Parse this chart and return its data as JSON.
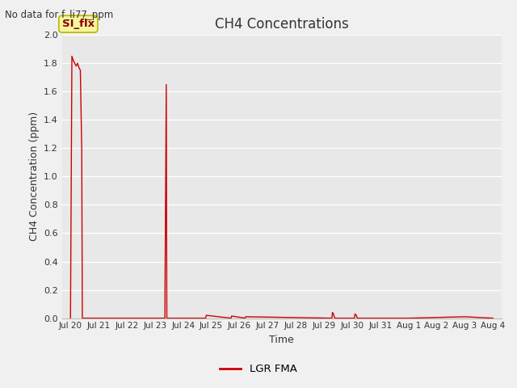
{
  "title": "CH4 Concentrations",
  "top_left_text": "No data for f_li77_ppm",
  "xlabel": "Time",
  "ylabel": "CH4 Concentration (ppm)",
  "ylim": [
    0.0,
    2.0
  ],
  "yticks": [
    0.0,
    0.2,
    0.4,
    0.6,
    0.8,
    1.0,
    1.2,
    1.4,
    1.6,
    1.8,
    2.0
  ],
  "fig_bg_color": "#f0f0f0",
  "plot_bg_color": "#e8e8e8",
  "line_color": "#cc0000",
  "legend_label": "LGR FMA",
  "si_flx_label": "SI_flx",
  "si_flx_box_color": "#f5f5a0",
  "si_flx_box_edge": "#b8b800",
  "x_tick_labels": [
    "Jul 20",
    "Jul 21",
    "Jul 22",
    "Jul 23",
    "Jul 24",
    "Jul 25",
    "Jul 26",
    "Jul 27",
    "Jul 28",
    "Jul 29",
    "Jul 30",
    "Jul 31",
    "Aug 1",
    "Aug 2",
    "Aug 3",
    "Aug 4"
  ],
  "x_tick_positions": [
    0,
    1,
    2,
    3,
    4,
    5,
    6,
    7,
    8,
    9,
    10,
    11,
    12,
    13,
    14,
    15
  ],
  "series_x": [
    0.0,
    0.05,
    0.1,
    0.15,
    0.2,
    0.25,
    0.3,
    0.35,
    0.4,
    0.42,
    0.45,
    1.0,
    3.35,
    3.4,
    3.42,
    3.45,
    4.8,
    4.82,
    5.7,
    5.72,
    6.2,
    6.22,
    9.28,
    9.3,
    9.32,
    9.35,
    9.38,
    10.08,
    10.1,
    10.12,
    10.15,
    10.18,
    12.0,
    14.0,
    15.0
  ],
  "series_y": [
    0.0,
    1.85,
    1.82,
    1.8,
    1.78,
    1.8,
    1.77,
    1.75,
    1.18,
    0.0,
    0.0,
    0.0,
    0.0,
    1.65,
    0.0,
    0.0,
    0.0,
    0.02,
    0.0,
    0.015,
    0.0,
    0.01,
    0.0,
    0.04,
    0.035,
    0.02,
    0.0,
    0.0,
    0.03,
    0.025,
    0.02,
    0.0,
    0.0,
    0.01,
    0.0
  ]
}
